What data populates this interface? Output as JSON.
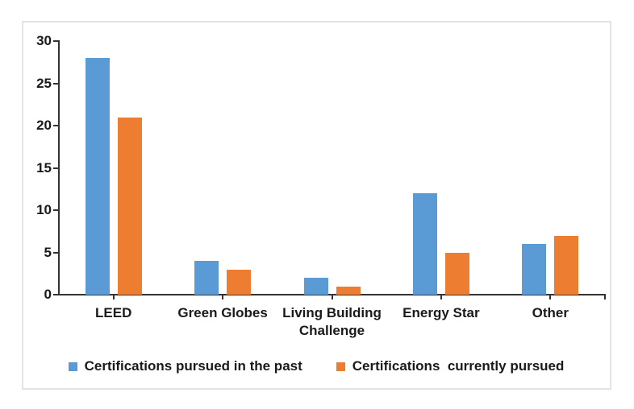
{
  "chart_data": {
    "type": "bar",
    "title": "",
    "xlabel": "",
    "ylabel": "",
    "categories": [
      "LEED",
      "Green Globes",
      "Living Building Challenge",
      "Energy Star",
      "Other"
    ],
    "series": [
      {
        "name": "Certifications pursued in the past",
        "color": "#5B9BD5",
        "values": [
          28,
          4,
          2,
          12,
          6
        ]
      },
      {
        "name": "Certifications  currently pursued",
        "color": "#ED7D31",
        "values": [
          21,
          3,
          1,
          5,
          7
        ]
      }
    ],
    "ylim": [
      0,
      30
    ],
    "yticks": [
      0,
      5,
      10,
      15,
      20,
      25,
      30
    ],
    "grid": false,
    "legend_position": "bottom"
  },
  "colors": {
    "series_past": "#5B9BD5",
    "series_current": "#ED7D31",
    "axis": "#333333",
    "text": "#1a1a1a",
    "frame_border": "#e3e3e3",
    "background": "#ffffff"
  }
}
